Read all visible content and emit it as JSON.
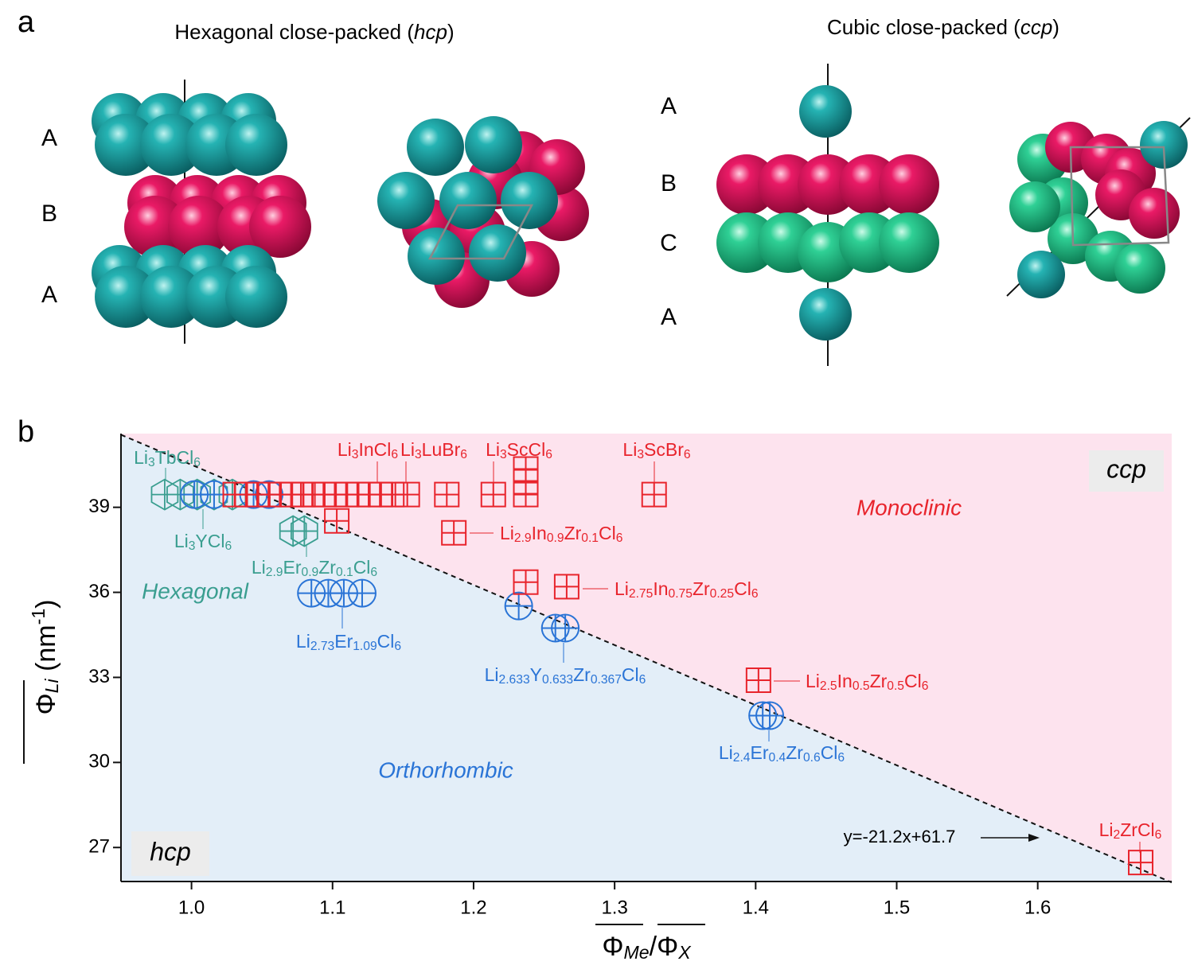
{
  "panels": [
    "a",
    "b"
  ],
  "panel_a": {
    "hcp_title": [
      {
        "text": "Hexagonal close-packed ("
      },
      {
        "text": "hcp",
        "style": "italic"
      },
      {
        "text": ")"
      }
    ],
    "ccp_title": [
      {
        "text": "Cubic close-packed ("
      },
      {
        "text": "ccp",
        "style": "italic"
      },
      {
        "text": ")"
      }
    ],
    "hcp_layers": [
      "A",
      "B",
      "A"
    ],
    "ccp_layers": [
      "A",
      "B",
      "C",
      "A"
    ]
  },
  "chart_data": {
    "type": "scatter",
    "x_label": [
      {
        "text": "Φ"
      },
      {
        "text": "Me",
        "style": "sub"
      },
      {
        "text": "/Φ"
      },
      {
        "text": "X",
        "style": "sub"
      }
    ],
    "y_label": [
      {
        "text": "Φ"
      },
      {
        "text": "Li",
        "style": "sub"
      },
      {
        "text": " (nm"
      },
      {
        "text": "-1",
        "style": "sup"
      },
      {
        "text": ")"
      }
    ],
    "xlim": [
      0.95,
      1.695
    ],
    "ylim": [
      25.8,
      41.6
    ],
    "xticks": [
      {
        "value": 1,
        "label": "1.0"
      },
      1.1,
      1.2,
      1.3,
      1.4,
      1.5,
      1.6
    ],
    "yticks": [
      27,
      30,
      33,
      36,
      39
    ],
    "series": [
      {
        "name": "Hexagonal",
        "color": "#3a9e90",
        "marker": "hexagon",
        "x": [
          0.981,
          0.992,
          1.004,
          1.016,
          1.029,
          1.072,
          1.08
        ],
        "values": [
          39.45,
          39.45,
          39.45,
          39.45,
          39.45,
          38.16,
          38.16
        ]
      },
      {
        "name": "Orthorhombic",
        "color": "#2a74d6",
        "marker": "circle",
        "x": [
          1.002,
          1.016,
          1.044,
          1.055,
          1.085,
          1.097,
          1.108,
          1.121,
          1.232,
          1.258,
          1.265,
          1.405,
          1.41
        ],
        "values": [
          39.45,
          39.45,
          39.45,
          39.45,
          35.97,
          35.97,
          35.97,
          35.97,
          35.52,
          34.74,
          34.74,
          31.65,
          31.65
        ]
      },
      {
        "name": "Monoclinic",
        "color": "#e8242c",
        "marker": "square",
        "x": [
          1.031,
          1.039,
          1.047,
          1.055,
          1.063,
          1.071,
          1.079,
          1.086,
          1.094,
          1.102,
          1.11,
          1.118,
          1.126,
          1.134,
          1.142,
          1.153,
          1.181,
          1.214,
          1.237,
          1.237,
          1.237,
          1.328,
          1.103,
          1.186,
          1.237,
          1.266,
          1.402,
          1.673
        ],
        "values": [
          39.45,
          39.45,
          39.45,
          39.45,
          39.45,
          39.45,
          39.45,
          39.45,
          39.45,
          39.45,
          39.45,
          39.45,
          39.45,
          39.45,
          39.45,
          39.45,
          39.45,
          39.45,
          39.45,
          39.9,
          40.35,
          39.45,
          38.52,
          38.1,
          36.36,
          36.2,
          32.9,
          26.47
        ]
      }
    ],
    "fit": {
      "slope": -21.2,
      "intercept": 61.7,
      "label": "y=-21.2x+61.7"
    },
    "region_above": "ccp",
    "region_below": "hcp",
    "above_color": "#fde3ee",
    "below_color": "#e3eef8",
    "annotations": [
      {
        "text": "Li3TbCl6",
        "series": 0
      },
      {
        "text": "Li3InCl6",
        "series": 2
      },
      {
        "text": "Li3LuBr6",
        "series": 2
      },
      {
        "text": "Li3ScCl6",
        "series": 2
      },
      {
        "text": "Li3ScBr6",
        "series": 2
      },
      {
        "text": "Li3YCl6",
        "series": 0
      },
      {
        "text": "Li2.9Er0.9Zr0.1Cl6",
        "series": 0
      },
      {
        "text": "Li2.9In0.9Zr0.1Cl6",
        "series": 2
      },
      {
        "text": "Li2.75In0.75Zr0.25Cl6",
        "series": 2
      },
      {
        "text": "Li2.73Er1.09Cl6",
        "series": 1
      },
      {
        "text": "Li2.633Y0.633Zr0.367Cl6",
        "series": 1
      },
      {
        "text": "Li2.5In0.5Zr0.5Cl6",
        "series": 2
      },
      {
        "text": "Li2.4Er0.4Zr0.6Cl6",
        "series": 1
      },
      {
        "text": "Li2ZrCl6",
        "series": 2
      }
    ]
  }
}
